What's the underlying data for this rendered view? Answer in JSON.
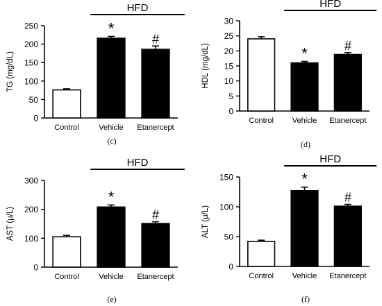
{
  "figure": {
    "panel_labels": [
      "(c)",
      "(d)",
      "(e)",
      "(f)"
    ]
  },
  "colors": {
    "control_fill": "#ffffff",
    "treated_fill": "#000000",
    "axis": "#000000"
  },
  "chart_data": [
    {
      "type": "bar",
      "panel": "(c)",
      "categories": [
        "Control",
        "Vehicle",
        "Etanercept"
      ],
      "values": [
        76,
        216,
        186
      ],
      "errors": [
        3,
        5,
        9
      ],
      "bar_fills": [
        "#ffffff",
        "#000000",
        "#000000"
      ],
      "significance": [
        "",
        "*",
        "#"
      ],
      "group_bar": {
        "label": "HFD",
        "spans": [
          "Vehicle",
          "Etanercept"
        ]
      },
      "ylabel": "TG (mg/dL)",
      "xlabel": "",
      "ylim": [
        0,
        250
      ],
      "yticks": [
        0,
        50,
        100,
        150,
        200,
        250
      ],
      "grid": false
    },
    {
      "type": "bar",
      "panel": "(d)",
      "categories": [
        "Control",
        "Vehicle",
        "Etanercept"
      ],
      "values": [
        24,
        16,
        18.8
      ],
      "errors": [
        0.7,
        0.5,
        0.6
      ],
      "bar_fills": [
        "#ffffff",
        "#000000",
        "#000000"
      ],
      "significance": [
        "",
        "*",
        "#"
      ],
      "group_bar": {
        "label": "HFD",
        "spans": [
          "Vehicle",
          "Etanercept"
        ]
      },
      "ylabel": "HDL (mg/dL)",
      "xlabel": "",
      "ylim": [
        0,
        30
      ],
      "yticks": [
        0,
        5,
        10,
        15,
        20,
        25,
        30
      ],
      "grid": false
    },
    {
      "type": "bar",
      "panel": "(e)",
      "categories": [
        "Control",
        "Vehicle",
        "Etanercept"
      ],
      "values": [
        105,
        208,
        151
      ],
      "errors": [
        5,
        7,
        6
      ],
      "bar_fills": [
        "#ffffff",
        "#000000",
        "#000000"
      ],
      "significance": [
        "",
        "*",
        "#"
      ],
      "group_bar": {
        "label": "HFD",
        "spans": [
          "Vehicle",
          "Etanercept"
        ]
      },
      "ylabel": "AST (μ/L)",
      "xlabel": "",
      "ylim": [
        0,
        300
      ],
      "yticks": [
        0,
        100,
        200,
        300
      ],
      "grid": false
    },
    {
      "type": "bar",
      "panel": "(f)",
      "categories": [
        "Control",
        "Vehicle",
        "Etanercept"
      ],
      "values": [
        42,
        127,
        101
      ],
      "errors": [
        2,
        6,
        3
      ],
      "bar_fills": [
        "#ffffff",
        "#000000",
        "#000000"
      ],
      "significance": [
        "",
        "*",
        "#"
      ],
      "group_bar": {
        "label": "HFD",
        "spans": [
          "Vehicle",
          "Etanercept"
        ]
      },
      "ylabel": "ALT (μ/L)",
      "xlabel": "",
      "ylim": [
        0,
        150
      ],
      "yticks": [
        0,
        50,
        100,
        150
      ],
      "grid": false
    }
  ]
}
